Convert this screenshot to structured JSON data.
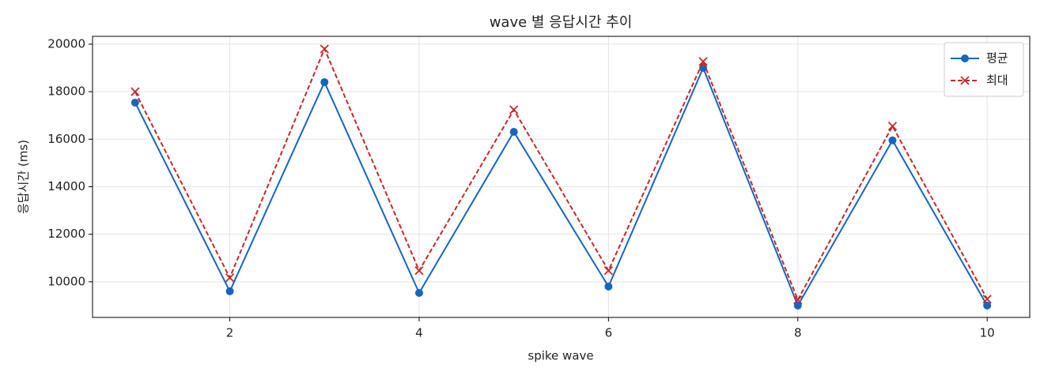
{
  "chart_data": {
    "type": "line",
    "title": "wave 별 응답시간 추이",
    "x_label": "spike wave",
    "y_label": "응답시간 (ms)",
    "x": [
      1,
      2,
      3,
      4,
      5,
      6,
      7,
      8,
      9,
      10
    ],
    "series": [
      {
        "name": "평균",
        "color": "#1565c0",
        "marker": "circle",
        "dash": "solid",
        "values": [
          17540,
          9600,
          18400,
          9530,
          16310,
          9800,
          19000,
          9000,
          15950,
          9000
        ]
      },
      {
        "name": "최대",
        "color": "#c62828",
        "marker": "x",
        "dash": "dashed",
        "values": [
          18000,
          10170,
          19800,
          10470,
          17240,
          10470,
          19270,
          9240,
          16550,
          9270
        ]
      }
    ],
    "xlim": [
      0.55,
      10.45
    ],
    "ylim": [
      8500,
      20330
    ],
    "xticks": [
      2,
      4,
      6,
      8,
      10
    ],
    "yticks": [
      10000,
      12000,
      14000,
      16000,
      18000,
      20000
    ],
    "grid": true,
    "legend": "upper right"
  }
}
